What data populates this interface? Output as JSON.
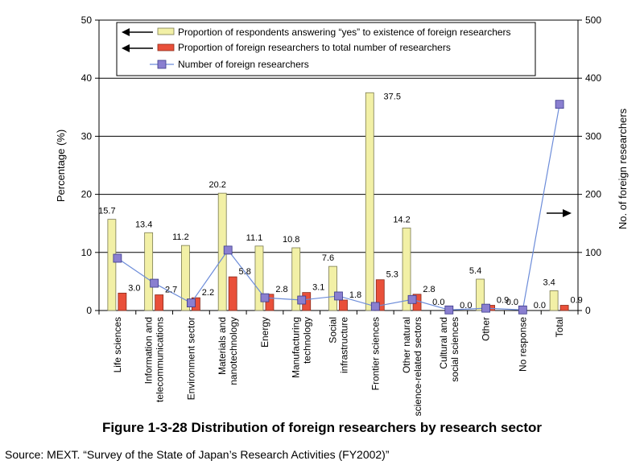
{
  "figure_caption": "Figure 1-3-28    Distribution of foreign researchers by research sector",
  "source": "Source: MEXT. “Survey of the State of Japan’s Research Activities (FY2002)”",
  "colors": {
    "yes_bar": "#f2f0a6",
    "proportion_bar": "#e9503a",
    "line": "#6c8cd9",
    "marker": "#8a7fd0",
    "gridline": "#000000"
  },
  "chart_data": {
    "type": "bar",
    "title": "",
    "xlabel": "",
    "ylabel": "Percentage (%)",
    "y2label": "No. of foreign researchers",
    "ylim": [
      0,
      50
    ],
    "y2lim": [
      0,
      500
    ],
    "yticks": [
      0,
      10,
      20,
      30,
      40,
      50
    ],
    "y2ticks": [
      0,
      100,
      200,
      300,
      400,
      500
    ],
    "grid": true,
    "legend_position": "top",
    "categories": [
      "Life sciences",
      "Information and telecommunications",
      "Environment sector",
      "Materials and nanotechnology",
      "Energy",
      "Manufacturing technology",
      "Social infrastructure",
      "Frontier sciences",
      "Other natural science-related sectors",
      "Cultural and social sciences",
      "Other",
      "No response",
      "Total"
    ],
    "series": [
      {
        "name": "Proportion of respondents answering “yes” to existence of foreign researchers",
        "type": "bar",
        "axis": "left",
        "values": [
          15.7,
          13.4,
          11.2,
          20.2,
          11.1,
          10.8,
          7.6,
          37.5,
          14.2,
          0.0,
          5.4,
          0.0,
          3.4
        ],
        "labels": [
          "15.7",
          "13.4",
          "11.2",
          "20.2",
          "11.1",
          "10.8",
          "7.6",
          "37.5",
          "14.2",
          "0.0",
          "5.4",
          "0.0",
          "3.4"
        ]
      },
      {
        "name": "Proportion of foreign researchers to total number of researchers",
        "type": "bar",
        "axis": "left",
        "values": [
          3.0,
          2.7,
          2.2,
          5.8,
          2.8,
          3.1,
          1.8,
          5.3,
          2.8,
          0.0,
          0.9,
          0.0,
          0.9
        ],
        "labels": [
          "3.0",
          "2.7",
          "2.2",
          "5.8",
          "2.8",
          "3.1",
          "1.8",
          "5.3",
          "2.8",
          "0.0",
          "0.9",
          "0.0",
          "0.9"
        ]
      },
      {
        "name": "Number of foreign researchers",
        "type": "line",
        "axis": "right",
        "values": [
          90,
          47,
          13,
          104,
          22,
          18,
          25,
          7,
          19,
          1,
          4,
          1,
          355
        ]
      }
    ]
  }
}
